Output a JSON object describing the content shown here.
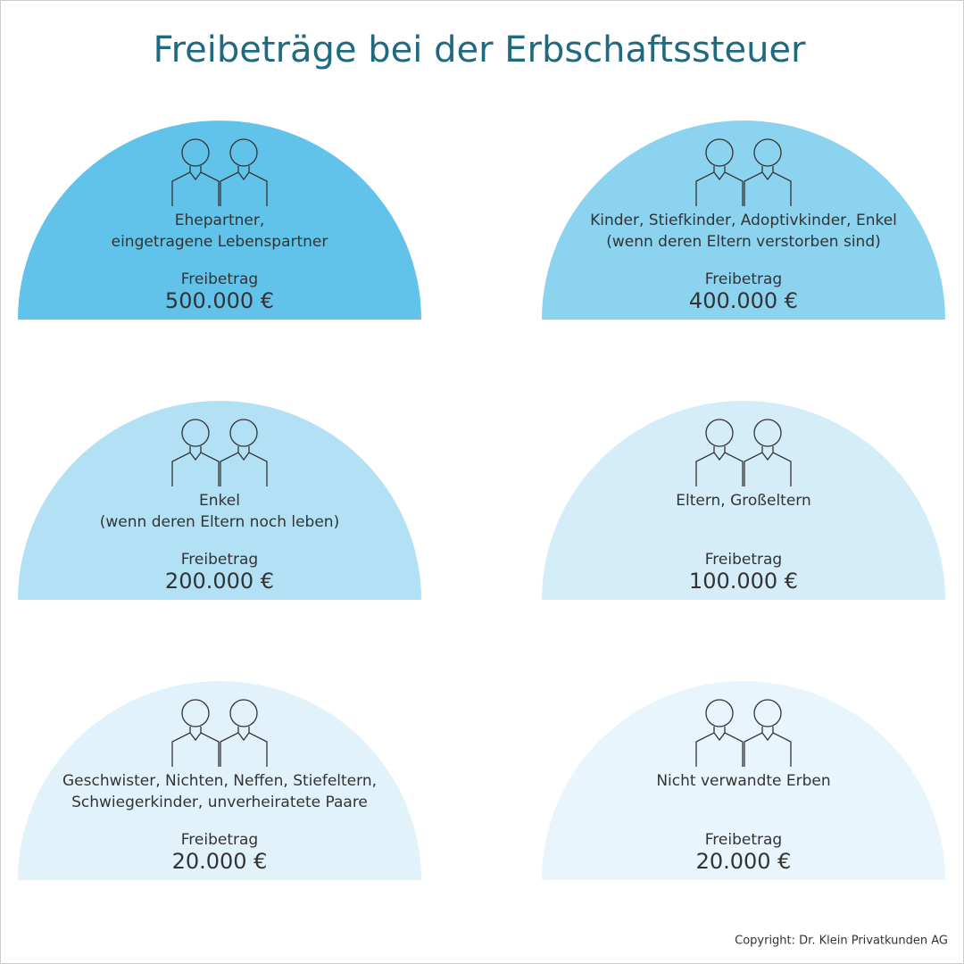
{
  "header": {
    "title": "Freibeträge bei der Erbschaftssteuer"
  },
  "cards": [
    {
      "label": [
        "Ehepartner,",
        "eingetragene Lebenspartner"
      ],
      "caption": "Freibetrag",
      "amount": "500.000 €",
      "color": "#62c3ea"
    },
    {
      "label": [
        "Kinder, Stiefkinder, Adoptivkinder, Enkel",
        "(wenn deren Eltern verstorben sind)"
      ],
      "caption": "Freibetrag",
      "amount": "400.000 €",
      "color": "#8cd3f0"
    },
    {
      "label": [
        "Enkel",
        "(wenn deren Eltern noch leben)"
      ],
      "caption": "Freibetrag",
      "amount": "200.000 €",
      "color": "#b2e1f5"
    },
    {
      "label": [
        "Eltern, Großeltern"
      ],
      "caption": "Freibetrag",
      "amount": "100.000 €",
      "color": "#d5edf9"
    },
    {
      "label": [
        "Geschwister, Nichten, Neffen, Stiefeltern,",
        "Schwiegerkinder, unverheiratete Paare"
      ],
      "caption": "Freibetrag",
      "amount": "20.000 €",
      "color": "#e2f2fb"
    },
    {
      "label": [
        "Nicht verwandte Erben"
      ],
      "caption": "Freibetrag",
      "amount": "20.000 €",
      "color": "#e8f5fc"
    }
  ],
  "footer": {
    "copyright": "Copyright: Dr. Klein Privatkunden AG"
  }
}
